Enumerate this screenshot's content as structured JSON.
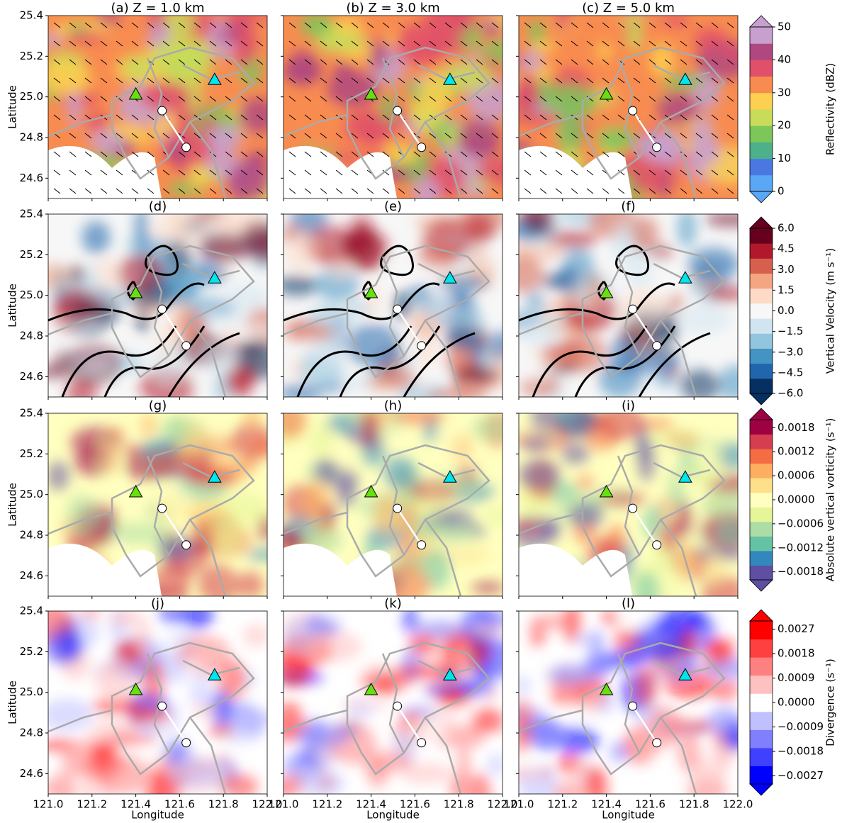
{
  "figure": {
    "panels": [
      {
        "title": "(a) Z = 1.0 km"
      },
      {
        "title": "(b) Z = 3.0 km"
      },
      {
        "title": "(c) Z = 5.0 km"
      },
      {
        "title": "(d)"
      },
      {
        "title": "(e)"
      },
      {
        "title": "(f)"
      },
      {
        "title": "(g)"
      },
      {
        "title": "(h)"
      },
      {
        "title": "(i)"
      },
      {
        "title": "(j)"
      },
      {
        "title": "(k)"
      },
      {
        "title": "(l)"
      }
    ],
    "x_label": "Longitude",
    "y_label": "Latitude",
    "xlim": [
      121.0,
      122.0
    ],
    "ylim": [
      24.5,
      25.4
    ],
    "xticks": [
      {
        "value": 121.0,
        "label": "121.0"
      },
      121.2,
      121.4,
      121.6,
      121.8,
      {
        "value": 122.0,
        "label": "122.0"
      }
    ],
    "yticks": [
      24.6,
      24.8,
      {
        "value": 25.0,
        "label": "25.0"
      },
      25.2,
      25.4
    ],
    "colorbars": [
      {
        "label": "Reflectivity (dBZ)",
        "lim": [
          0,
          50
        ],
        "ticks": [
          0,
          10,
          20,
          30,
          40,
          50
        ],
        "colors": [
          "#5aa8f5",
          "#4b78e0",
          "#4cb08a",
          "#7cc65a",
          "#c8dc5a",
          "#fdd050",
          "#f88c50",
          "#e0506a",
          "#b04880",
          "#c8a0d0"
        ]
      },
      {
        "label": "Vertical Velocity (m s⁻¹)",
        "lim": [
          -6,
          6
        ],
        "ticks": [
          {
            "value": -6,
            "label": "−6.0"
          },
          {
            "value": -4.5,
            "label": "−4.5"
          },
          {
            "value": -3,
            "label": "−3.0"
          },
          {
            "value": -1.5,
            "label": "−1.5"
          },
          {
            "value": 0,
            "label": "0.0"
          },
          1.5,
          {
            "value": 3,
            "label": "3.0"
          },
          4.5,
          {
            "value": 6,
            "label": "6.0"
          }
        ],
        "colors": [
          "#053061",
          "#2166ac",
          "#4393c3",
          "#92c5de",
          "#d1e5f0",
          "#f7f7f7",
          "#fddbc7",
          "#f4a582",
          "#d6604d",
          "#b2182b",
          "#67001f"
        ]
      },
      {
        "label": "Absolute vertical vorticity (s⁻¹)",
        "lim": [
          -0.002,
          0.002
        ],
        "ticks": [
          {
            "value": -0.0018,
            "label": "−0.0018"
          },
          {
            "value": -0.0012,
            "label": "−0.0012"
          },
          {
            "value": -0.0006,
            "label": "−0.0006"
          },
          {
            "value": 0,
            "label": "0.0000"
          },
          0.0006,
          0.0012,
          0.0018
        ],
        "colors": [
          "#5e4fa2",
          "#3288bd",
          "#66c2a5",
          "#abdda4",
          "#e6f598",
          "#ffffbf",
          "#fee08b",
          "#fdae61",
          "#f46d43",
          "#d53e4f",
          "#9e0142"
        ]
      },
      {
        "label": "Divergence (s⁻¹)",
        "lim": [
          -0.003,
          0.003
        ],
        "ticks": [
          {
            "value": -0.0027,
            "label": "−0.0027"
          },
          {
            "value": -0.0018,
            "label": "−0.0018"
          },
          {
            "value": -0.0009,
            "label": "−0.0009"
          },
          {
            "value": 0,
            "label": "0.0000"
          },
          0.0009,
          0.0018,
          0.0027
        ],
        "colors": [
          "#0000ff",
          "#4040ff",
          "#8080ff",
          "#c0c0ff",
          "#ffffff",
          "#ffc0c0",
          "#ff8080",
          "#ff4040",
          "#ff0000"
        ]
      }
    ]
  }
}
